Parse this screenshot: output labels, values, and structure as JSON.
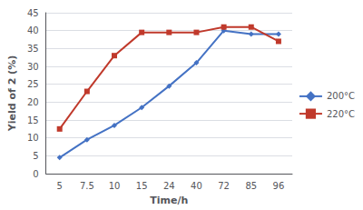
{
  "chart_data": {
    "type": "line",
    "xlabel": "Time/h",
    "ylabel": "Yield of 2 (%)",
    "categories": [
      "5",
      "7.5",
      "10",
      "15",
      "24",
      "40",
      "72",
      "85",
      "96"
    ],
    "series": [
      {
        "name": "200°C",
        "color": "#4472C4",
        "marker": "diamond",
        "values": [
          4.5,
          9.5,
          13.5,
          18.5,
          24.5,
          31,
          40,
          39,
          39
        ]
      },
      {
        "name": "220°C",
        "color": "#C0392B",
        "marker": "square",
        "values": [
          12.5,
          23,
          33,
          39.5,
          39.5,
          39.5,
          41,
          41,
          37
        ]
      }
    ],
    "ylim": [
      0,
      45
    ],
    "yticks": [
      0,
      5,
      10,
      15,
      20,
      25,
      30,
      35,
      40,
      45
    ],
    "grid": true,
    "legend": "right"
  }
}
